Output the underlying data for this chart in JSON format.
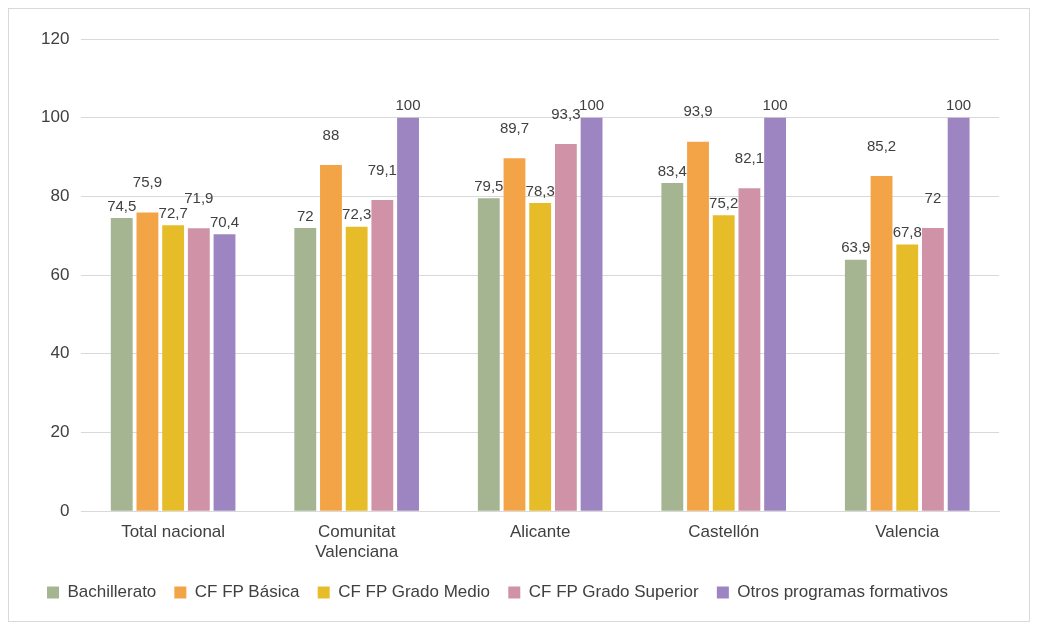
{
  "chart_data": {
    "type": "bar",
    "categories": [
      "Total nacional",
      "Comunitat Valenciana",
      "Alicante",
      "Castellón",
      "Valencia"
    ],
    "series": [
      {
        "name": "Bachillerato",
        "color": "#a5b592",
        "values": [
          74.5,
          72,
          79.5,
          83.4,
          63.9
        ],
        "value_labels": [
          "74,5",
          "72",
          "79,5",
          "83,4",
          "63,9"
        ]
      },
      {
        "name": "CF FP Básica",
        "color": "#f3a447",
        "values": [
          75.9,
          88,
          89.7,
          93.9,
          85.2
        ],
        "value_labels": [
          "75,9",
          "88",
          "89,7",
          "93,9",
          "85,2"
        ]
      },
      {
        "name": "CF FP Grado Medio",
        "color": "#e7bc29",
        "values": [
          72.7,
          72.3,
          78.3,
          75.2,
          67.8
        ],
        "value_labels": [
          "72,7",
          "72,3",
          "78,3",
          "75,2",
          "67,8"
        ]
      },
      {
        "name": "CF FP Grado Superior",
        "color": "#d092a7",
        "values": [
          71.9,
          79.1,
          93.3,
          82.1,
          72
        ],
        "value_labels": [
          "71,9",
          "79,1",
          "93,3",
          "82,1",
          "72"
        ]
      },
      {
        "name": "Otros programas formativos",
        "color": "#9c85c0",
        "values": [
          70.4,
          100,
          100,
          100,
          100
        ],
        "value_labels": [
          "70,4",
          "100",
          "100",
          "100",
          "100"
        ]
      }
    ],
    "ylim": [
      0,
      120
    ],
    "yticks": [
      0,
      20,
      40,
      60,
      80,
      100,
      120
    ],
    "grid": "y",
    "legend": "bottom"
  }
}
